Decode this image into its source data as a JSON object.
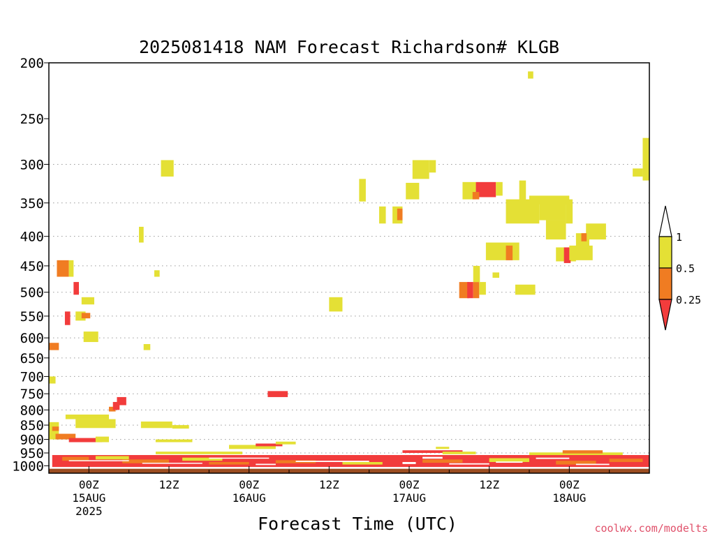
{
  "chart_data": {
    "type": "heatmap",
    "title": "2025081418 NAM Forecast Richardson# KLGB",
    "xlabel": "Forecast Time (UTC)",
    "ylabel": "",
    "watermark": "coolwx.com/modelts",
    "y_scale": "log-pressure",
    "y_unit": "hPa",
    "ylim": [
      1030,
      200
    ],
    "xlim_hours": [
      -6,
      84
    ],
    "y_ticks": [
      200,
      250,
      300,
      350,
      400,
      450,
      500,
      550,
      600,
      650,
      700,
      750,
      800,
      850,
      900,
      950,
      1000
    ],
    "y_grid": [
      300,
      350,
      400,
      450,
      500,
      550,
      600,
      650,
      700,
      750,
      800,
      850,
      900,
      950,
      1000
    ],
    "x_ticks": [
      {
        "hour": 0,
        "label": "00Z",
        "date": "15AUG",
        "year": "2025"
      },
      {
        "hour": 12,
        "label": "12Z",
        "date": "",
        "year": ""
      },
      {
        "hour": 24,
        "label": "00Z",
        "date": "16AUG",
        "year": ""
      },
      {
        "hour": 36,
        "label": "12Z",
        "date": "",
        "year": ""
      },
      {
        "hour": 48,
        "label": "00Z",
        "date": "17AUG",
        "year": ""
      },
      {
        "hour": 60,
        "label": "12Z",
        "date": "",
        "year": ""
      },
      {
        "hour": 72,
        "label": "00Z",
        "date": "18AUG",
        "year": ""
      }
    ],
    "colors": {
      "lt025": "#f23c3c",
      "r025_05": "#f07c22",
      "r05_1": "#e4e035",
      "ground": "#9b4d21",
      "gridline": "#9a9a9a"
    },
    "colorbar": {
      "levels": [
        "1",
        "0.5",
        "0.25"
      ],
      "bins": [
        {
          "range": ">1",
          "color": "#ffffff"
        },
        {
          "range": "0.5-1",
          "color": "#e4e035"
        },
        {
          "range": "0.25-0.5",
          "color": "#f07c22"
        },
        {
          "range": "<0.25",
          "color": "#f23c3c"
        }
      ]
    },
    "cells": [
      {
        "t0": -6,
        "t1": -4.5,
        "p0": 612,
        "p1": 630,
        "c": "r025_05"
      },
      {
        "t0": -6,
        "t1": -5,
        "p0": 700,
        "p1": 720,
        "c": "r05_1"
      },
      {
        "t0": -4.8,
        "t1": -3,
        "p0": 440,
        "p1": 470,
        "c": "r025_05"
      },
      {
        "t0": -3,
        "t1": -2.3,
        "p0": 440,
        "p1": 470,
        "c": "r05_1"
      },
      {
        "t0": -2.3,
        "t1": -1.5,
        "p0": 480,
        "p1": 505,
        "c": "lt025"
      },
      {
        "t0": -3.6,
        "t1": -2.8,
        "p0": 540,
        "p1": 570,
        "c": "lt025"
      },
      {
        "t0": -2,
        "t1": -0.5,
        "p0": 540,
        "p1": 560,
        "c": "r05_1"
      },
      {
        "t0": -1.1,
        "t1": 0.8,
        "p0": 510,
        "p1": 525,
        "c": "r05_1"
      },
      {
        "t0": -1.1,
        "t1": 0.2,
        "p0": 543,
        "p1": 555,
        "c": "r025_05"
      },
      {
        "t0": -0.8,
        "t1": 1.4,
        "p0": 585,
        "p1": 610,
        "c": "r05_1"
      },
      {
        "t0": -3.5,
        "t1": 3,
        "p0": 815,
        "p1": 830,
        "c": "r05_1"
      },
      {
        "t0": -2,
        "t1": 4,
        "p0": 830,
        "p1": 860,
        "c": "r05_1"
      },
      {
        "t0": -6,
        "t1": -4.5,
        "p0": 840,
        "p1": 900,
        "c": "r05_1"
      },
      {
        "t0": -5.5,
        "t1": -4.5,
        "p0": 855,
        "p1": 870,
        "c": "r025_05"
      },
      {
        "t0": -5,
        "t1": -2,
        "p0": 880,
        "p1": 900,
        "c": "r025_05"
      },
      {
        "t0": -3,
        "t1": 2,
        "p0": 895,
        "p1": 910,
        "c": "lt025"
      },
      {
        "t0": 1,
        "t1": 3,
        "p0": 890,
        "p1": 910,
        "c": "r05_1"
      },
      {
        "t0": 3,
        "t1": 4,
        "p0": 790,
        "p1": 805,
        "c": "r025_05"
      },
      {
        "t0": 3.6,
        "t1": 4.6,
        "p0": 775,
        "p1": 800,
        "c": "lt025"
      },
      {
        "t0": 4.2,
        "t1": 5.6,
        "p0": 760,
        "p1": 785,
        "c": "lt025"
      },
      {
        "t0": 7.5,
        "t1": 8.2,
        "p0": 385,
        "p1": 410,
        "c": "r05_1"
      },
      {
        "t0": 9.8,
        "t1": 10.6,
        "p0": 458,
        "p1": 470,
        "c": "r05_1"
      },
      {
        "t0": 8.2,
        "t1": 9.2,
        "p0": 615,
        "p1": 630,
        "c": "r05_1"
      },
      {
        "t0": 10.8,
        "t1": 12.7,
        "p0": 295,
        "p1": 315,
        "c": "r05_1"
      },
      {
        "t0": 7.8,
        "t1": 12.5,
        "p0": 838,
        "p1": 860,
        "c": "r05_1"
      },
      {
        "t0": 12.5,
        "t1": 15,
        "p0": 850,
        "p1": 862,
        "c": "r05_1"
      },
      {
        "t0": 10,
        "t1": 15.5,
        "p0": 900,
        "p1": 910,
        "c": "r05_1"
      },
      {
        "t0": 6.5,
        "t1": 7.5,
        "p0": 935,
        "p1": 945,
        "c": "r025_05"
      },
      {
        "t0": 10,
        "t1": 23,
        "p0": 945,
        "p1": 955,
        "c": "r05_1"
      },
      {
        "t0": 21,
        "t1": 28,
        "p0": 920,
        "p1": 935,
        "c": "r05_1"
      },
      {
        "t0": 25,
        "t1": 29,
        "p0": 915,
        "p1": 925,
        "c": "lt025"
      },
      {
        "t0": 28,
        "t1": 31,
        "p0": 908,
        "p1": 918,
        "c": "r05_1"
      },
      {
        "t0": 26.8,
        "t1": 29.8,
        "p0": 742,
        "p1": 760,
        "c": "lt025"
      },
      {
        "t0": 36,
        "t1": 38,
        "p0": 510,
        "p1": 540,
        "c": "r05_1"
      },
      {
        "t0": 40.5,
        "t1": 41.5,
        "p0": 318,
        "p1": 348,
        "c": "r05_1"
      },
      {
        "t0": 43.5,
        "t1": 44.5,
        "p0": 355,
        "p1": 380,
        "c": "r05_1"
      },
      {
        "t0": 45.5,
        "t1": 47,
        "p0": 355,
        "p1": 380,
        "c": "r05_1"
      },
      {
        "t0": 46.2,
        "t1": 47,
        "p0": 358,
        "p1": 375,
        "c": "r025_05"
      },
      {
        "t0": 47.5,
        "t1": 49.5,
        "p0": 323,
        "p1": 345,
        "c": "r05_1"
      },
      {
        "t0": 48.5,
        "t1": 51,
        "p0": 295,
        "p1": 318,
        "c": "r05_1"
      },
      {
        "t0": 51,
        "t1": 52,
        "p0": 295,
        "p1": 310,
        "c": "r05_1"
      },
      {
        "t0": 52,
        "t1": 54,
        "p0": 927,
        "p1": 935,
        "c": "r05_1"
      },
      {
        "t0": 47,
        "t1": 56,
        "p0": 940,
        "p1": 950,
        "c": "lt025"
      },
      {
        "t0": 53,
        "t1": 58,
        "p0": 945,
        "p1": 955,
        "c": "r05_1"
      },
      {
        "t0": 55.5,
        "t1": 57,
        "p0": 480,
        "p1": 512,
        "c": "r025_05"
      },
      {
        "t0": 56.7,
        "t1": 57.6,
        "p0": 480,
        "p1": 512,
        "c": "lt025"
      },
      {
        "t0": 57.6,
        "t1": 58.5,
        "p0": 480,
        "p1": 512,
        "c": "r025_05"
      },
      {
        "t0": 58.5,
        "t1": 59.5,
        "p0": 480,
        "p1": 505,
        "c": "r05_1"
      },
      {
        "t0": 57.6,
        "t1": 58.6,
        "p0": 450,
        "p1": 480,
        "c": "r05_1"
      },
      {
        "t0": 56,
        "t1": 58,
        "p0": 322,
        "p1": 345,
        "c": "r05_1"
      },
      {
        "t0": 58,
        "t1": 61,
        "p0": 322,
        "p1": 342,
        "c": "lt025"
      },
      {
        "t0": 57.5,
        "t1": 58.5,
        "p0": 335,
        "p1": 345,
        "c": "r025_05"
      },
      {
        "t0": 61,
        "t1": 62,
        "p0": 322,
        "p1": 340,
        "c": "r05_1"
      },
      {
        "t0": 60.5,
        "t1": 61.5,
        "p0": 462,
        "p1": 472,
        "c": "r05_1"
      },
      {
        "t0": 59.5,
        "t1": 64.5,
        "p0": 410,
        "p1": 440,
        "c": "r05_1"
      },
      {
        "t0": 62.5,
        "t1": 63.5,
        "p0": 415,
        "p1": 440,
        "c": "r025_05"
      },
      {
        "t0": 64.5,
        "t1": 65.5,
        "p0": 320,
        "p1": 350,
        "c": "r05_1"
      },
      {
        "t0": 62.5,
        "t1": 67.5,
        "p0": 345,
        "p1": 380,
        "c": "r05_1"
      },
      {
        "t0": 67.5,
        "t1": 71.5,
        "p0": 350,
        "p1": 375,
        "c": "r05_1"
      },
      {
        "t0": 66,
        "t1": 72,
        "p0": 340,
        "p1": 352,
        "c": "r05_1"
      },
      {
        "t0": 71.5,
        "t1": 72.5,
        "p0": 345,
        "p1": 380,
        "c": "r05_1"
      },
      {
        "t0": 68.5,
        "t1": 71.5,
        "p0": 375,
        "p1": 405,
        "c": "r05_1"
      },
      {
        "t0": 63.9,
        "t1": 66.9,
        "p0": 485,
        "p1": 505,
        "c": "r05_1"
      },
      {
        "t0": 65.8,
        "t1": 66.6,
        "p0": 207,
        "p1": 213,
        "c": "r05_1"
      },
      {
        "t0": 70,
        "t1": 73,
        "p0": 418,
        "p1": 442,
        "c": "r05_1"
      },
      {
        "t0": 71.2,
        "t1": 72.2,
        "p0": 418,
        "p1": 445,
        "c": "lt025"
      },
      {
        "t0": 72,
        "t1": 75.5,
        "p0": 415,
        "p1": 440,
        "c": "r05_1"
      },
      {
        "t0": 73,
        "t1": 75,
        "p0": 395,
        "p1": 420,
        "c": "r05_1"
      },
      {
        "t0": 74.5,
        "t1": 77.5,
        "p0": 380,
        "p1": 405,
        "c": "r05_1"
      },
      {
        "t0": 73.8,
        "t1": 74.6,
        "p0": 395,
        "p1": 408,
        "c": "r025_05"
      },
      {
        "t0": 83,
        "t1": 84,
        "p0": 270,
        "p1": 320,
        "c": "r05_1"
      },
      {
        "t0": 81.5,
        "t1": 83,
        "p0": 305,
        "p1": 315,
        "c": "r05_1"
      },
      {
        "t0": 66,
        "t1": 80,
        "p0": 948,
        "p1": 960,
        "c": "r05_1"
      },
      {
        "t0": 71,
        "t1": 77,
        "p0": 940,
        "p1": 952,
        "c": "r025_05"
      },
      {
        "t0": -5.5,
        "t1": 84,
        "p0": 958,
        "p1": 1005,
        "c": "lt025"
      },
      {
        "t0": -4,
        "t1": 0,
        "p0": 965,
        "p1": 980,
        "c": "r025_05"
      },
      {
        "t0": 1,
        "t1": 6,
        "p0": 962,
        "p1": 975,
        "c": "r05_1"
      },
      {
        "t0": 5,
        "t1": 12,
        "p0": 975,
        "p1": 990,
        "c": "r025_05"
      },
      {
        "t0": 14,
        "t1": 20,
        "p0": 968,
        "p1": 980,
        "c": "r05_1"
      },
      {
        "t0": 18,
        "t1": 24,
        "p0": 985,
        "p1": 995,
        "c": "r025_05"
      },
      {
        "t0": 28,
        "t1": 34,
        "p0": 978,
        "p1": 990,
        "c": "r025_05"
      },
      {
        "t0": 38,
        "t1": 44,
        "p0": 985,
        "p1": 995,
        "c": "r05_1"
      },
      {
        "t0": 50,
        "t1": 56,
        "p0": 975,
        "p1": 988,
        "c": "r025_05"
      },
      {
        "t0": 60,
        "t1": 66,
        "p0": 970,
        "p1": 985,
        "c": "r05_1"
      },
      {
        "t0": 70,
        "t1": 76,
        "p0": 980,
        "p1": 995,
        "c": "r025_05"
      },
      {
        "t0": 78,
        "t1": 83,
        "p0": 972,
        "p1": 985,
        "c": "r025_05"
      },
      {
        "t0": 84,
        "t1": 84,
        "p0": 960,
        "p1": 960,
        "c": "r05_1"
      }
    ],
    "white_gaps": [
      {
        "t0": -3,
        "t1": 6,
        "p0": 978,
        "p1": 982
      },
      {
        "t0": 8,
        "t1": 17,
        "p0": 988,
        "p1": 992
      },
      {
        "t0": 18,
        "t1": 27,
        "p0": 968,
        "p1": 972
      },
      {
        "t0": 25,
        "t1": 28,
        "p0": 992,
        "p1": 997
      },
      {
        "t0": 31,
        "t1": 42,
        "p0": 980,
        "p1": 985
      },
      {
        "t0": 47,
        "t1": 49,
        "p0": 985,
        "p1": 993
      },
      {
        "t0": 50,
        "t1": 53,
        "p0": 965,
        "p1": 972
      },
      {
        "t0": 54,
        "t1": 60,
        "p0": 990,
        "p1": 995
      },
      {
        "t0": 61,
        "t1": 65,
        "p0": 983,
        "p1": 988
      },
      {
        "t0": 67,
        "t1": 72,
        "p0": 968,
        "p1": 973
      },
      {
        "t0": 73,
        "t1": 78,
        "p0": 992,
        "p1": 997
      },
      {
        "t0": -6,
        "t1": 84,
        "p0": 1005,
        "p1": 1010
      },
      {
        "t0": -6,
        "t1": 10,
        "p0": 925,
        "p1": 958
      },
      {
        "t0": 10,
        "t1": 20,
        "p0": 955,
        "p1": 958
      }
    ]
  }
}
